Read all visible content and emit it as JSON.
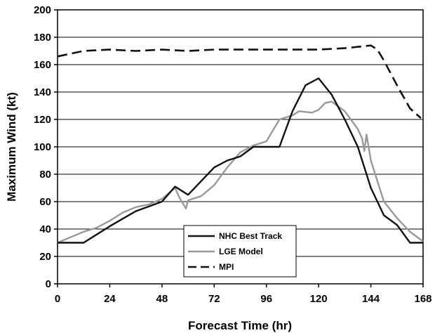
{
  "chart_data": {
    "type": "line",
    "title": "",
    "xlabel": "Forecast Time (hr)",
    "ylabel": "Maximum Wind (kt)",
    "xlim": [
      0,
      168
    ],
    "ylim": [
      0,
      200
    ],
    "xticks": [
      0,
      24,
      48,
      72,
      96,
      120,
      144,
      168
    ],
    "yticks": [
      0,
      20,
      40,
      60,
      80,
      100,
      120,
      140,
      160,
      180,
      200
    ],
    "grid": "horizontal",
    "legend_position": "bottom-center",
    "series": [
      {
        "name": "NHC Best Track",
        "color": "#111111",
        "style": "solid",
        "points": [
          [
            0,
            30
          ],
          [
            12,
            30
          ],
          [
            18,
            36
          ],
          [
            24,
            42
          ],
          [
            36,
            53
          ],
          [
            48,
            60
          ],
          [
            54,
            71
          ],
          [
            60,
            65
          ],
          [
            66,
            75
          ],
          [
            72,
            85
          ],
          [
            78,
            90
          ],
          [
            84,
            93
          ],
          [
            90,
            100
          ],
          [
            102,
            100
          ],
          [
            108,
            126
          ],
          [
            114,
            145
          ],
          [
            120,
            150
          ],
          [
            126,
            138
          ],
          [
            132,
            120
          ],
          [
            138,
            100
          ],
          [
            144,
            70
          ],
          [
            150,
            50
          ],
          [
            156,
            43
          ],
          [
            162,
            30
          ],
          [
            168,
            30
          ]
        ]
      },
      {
        "name": "LGE Model",
        "color": "#999999",
        "style": "solid",
        "points": [
          [
            0,
            30
          ],
          [
            6,
            34
          ],
          [
            12,
            38
          ],
          [
            18,
            41
          ],
          [
            24,
            46
          ],
          [
            30,
            52
          ],
          [
            36,
            56
          ],
          [
            42,
            58
          ],
          [
            48,
            62
          ],
          [
            54,
            70
          ],
          [
            56,
            63
          ],
          [
            59,
            55
          ],
          [
            60,
            61
          ],
          [
            66,
            64
          ],
          [
            72,
            72
          ],
          [
            78,
            85
          ],
          [
            84,
            96
          ],
          [
            90,
            101
          ],
          [
            96,
            104
          ],
          [
            102,
            120
          ],
          [
            108,
            123
          ],
          [
            111,
            126
          ],
          [
            117,
            125
          ],
          [
            120,
            127
          ],
          [
            123,
            132
          ],
          [
            126,
            133
          ],
          [
            132,
            126
          ],
          [
            138,
            113
          ],
          [
            140,
            106
          ],
          [
            141,
            97
          ],
          [
            142,
            109
          ],
          [
            144,
            90
          ],
          [
            150,
            60
          ],
          [
            156,
            48
          ],
          [
            162,
            38
          ],
          [
            168,
            31
          ]
        ]
      },
      {
        "name": "MPI",
        "color": "#111111",
        "style": "dashed",
        "points": [
          [
            0,
            166
          ],
          [
            6,
            168
          ],
          [
            12,
            170
          ],
          [
            24,
            171
          ],
          [
            36,
            170
          ],
          [
            48,
            171
          ],
          [
            60,
            170
          ],
          [
            72,
            171
          ],
          [
            96,
            171
          ],
          [
            120,
            171
          ],
          [
            132,
            172
          ],
          [
            144,
            174
          ],
          [
            147,
            171
          ],
          [
            150,
            163
          ],
          [
            156,
            145
          ],
          [
            162,
            128
          ],
          [
            167,
            121
          ]
        ]
      }
    ]
  }
}
